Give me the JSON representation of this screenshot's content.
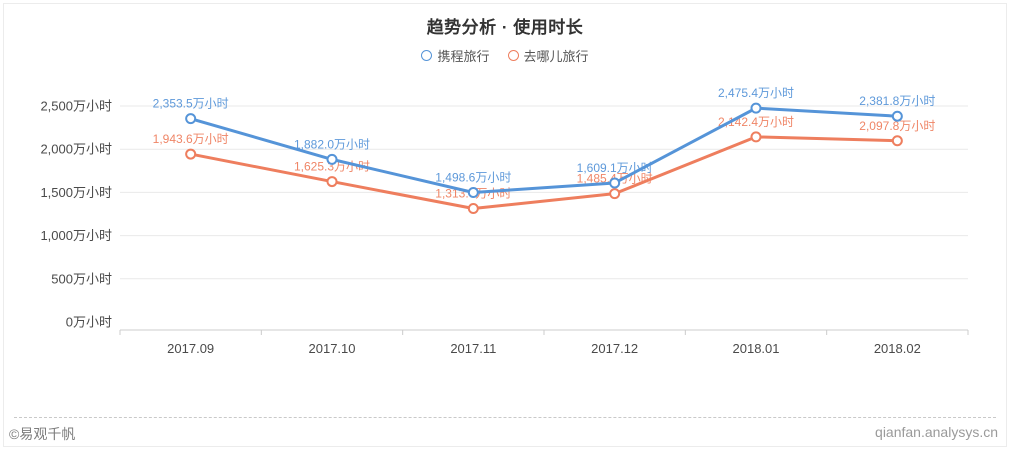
{
  "chart_data": {
    "type": "line",
    "title": "趋势分析 · 使用时长",
    "unit": "万小时",
    "categories": [
      "2017.09",
      "2017.10",
      "2017.11",
      "2017.12",
      "2018.01",
      "2018.02"
    ],
    "y_tick_values": [
      0,
      500,
      1000,
      1500,
      2000,
      2500
    ],
    "y_tick_labels": [
      "0万小时",
      "500万小时",
      "1,000万小时",
      "1,500万小时",
      "2,000万小时",
      "2,500万小时"
    ],
    "ylim": [
      0,
      2500
    ],
    "grid": true,
    "legend_position": "top",
    "series": [
      {
        "name": "携程旅行",
        "color": "#5594d8",
        "values": [
          2353.5,
          1882.0,
          1498.6,
          1609.1,
          2475.4,
          2381.8
        ],
        "labels": [
          "2,353.5万小时",
          "1,882.0万小时",
          "1,498.6万小时",
          "1,609.1万小时",
          "2,475.4万小时",
          "2,381.8万小时"
        ]
      },
      {
        "name": "去哪儿旅行",
        "color": "#ee7e5e",
        "values": [
          1943.6,
          1625.3,
          1313.6,
          1485.4,
          2142.4,
          2097.8
        ],
        "labels": [
          "1,943.6万小时",
          "1,625.3万小时",
          "1,313.6万小时",
          "1,485.4万小时",
          "2,142.4万小时",
          "2,097.8万小时"
        ]
      }
    ]
  },
  "footer": {
    "copyright": "©易观千帆",
    "site": "qianfan.analysys.cn"
  }
}
